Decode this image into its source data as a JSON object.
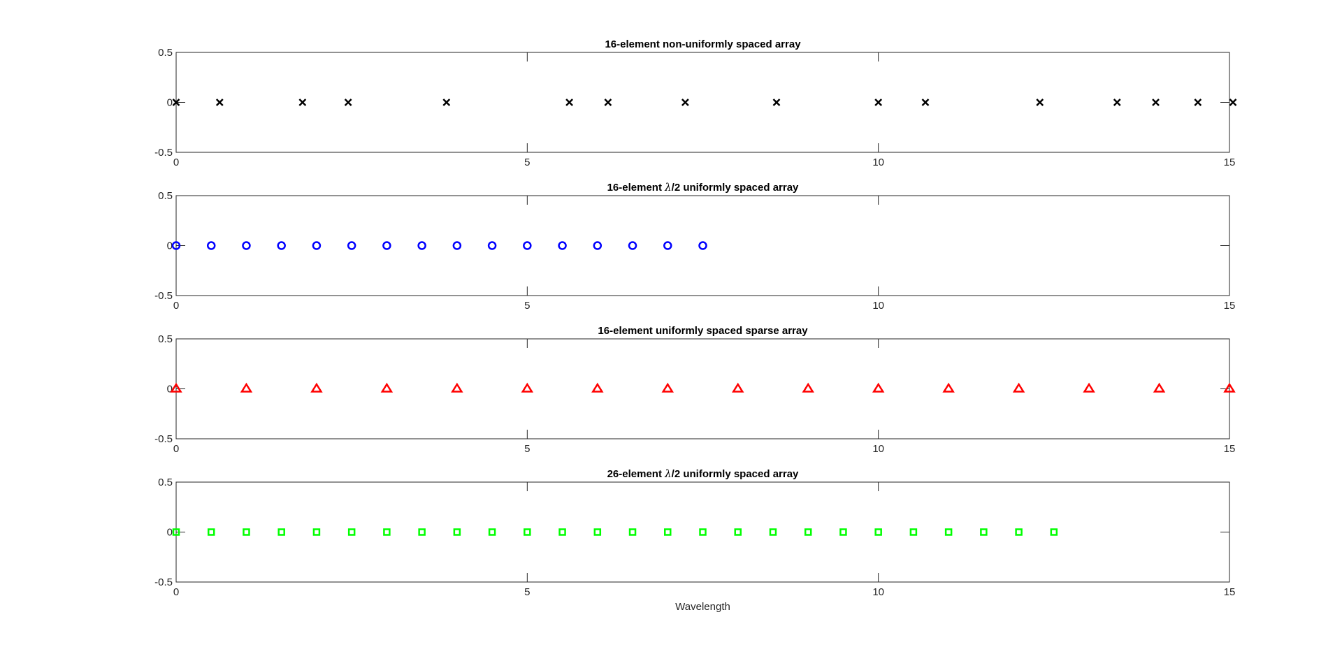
{
  "chart_data": [
    {
      "type": "scatter",
      "title": "16-element non-uniformly spaced array",
      "title_parts": [
        "16-element non-uniformly spaced array"
      ],
      "xlabel": "",
      "ylabel": "",
      "xlim": [
        0,
        15
      ],
      "ylim": [
        -0.5,
        0.5
      ],
      "xticks": [
        0,
        5,
        10,
        15
      ],
      "yticks": [
        -0.5,
        0,
        0.5
      ],
      "xtick_labels": [
        "0",
        "5",
        "10",
        "15"
      ],
      "ytick_labels": [
        "-0.5",
        "0",
        "0.5"
      ],
      "grid": false,
      "marker": "x",
      "color": "#000000",
      "series": [
        {
          "x": [
            0,
            0.62,
            1.8,
            2.45,
            3.85,
            5.6,
            6.15,
            7.25,
            8.55,
            10.0,
            10.67,
            12.3,
            13.4,
            13.95,
            14.55,
            15.05
          ],
          "y": [
            0,
            0,
            0,
            0,
            0,
            0,
            0,
            0,
            0,
            0,
            0,
            0,
            0,
            0,
            0,
            0
          ]
        }
      ]
    },
    {
      "type": "scatter",
      "title": "16-element λ/2 uniformly spaced array",
      "title_parts": [
        "16-element ",
        "λ",
        "/2 uniformly spaced array"
      ],
      "xlabel": "",
      "ylabel": "",
      "xlim": [
        0,
        15
      ],
      "ylim": [
        -0.5,
        0.5
      ],
      "xticks": [
        0,
        5,
        10,
        15
      ],
      "yticks": [
        -0.5,
        0,
        0.5
      ],
      "xtick_labels": [
        "0",
        "5",
        "10",
        "15"
      ],
      "ytick_labels": [
        "-0.5",
        "0",
        "0.5"
      ],
      "grid": false,
      "marker": "o",
      "color": "#0000FF",
      "series": [
        {
          "x": [
            0,
            0.5,
            1.0,
            1.5,
            2.0,
            2.5,
            3.0,
            3.5,
            4.0,
            4.5,
            5.0,
            5.5,
            6.0,
            6.5,
            7.0,
            7.5
          ],
          "y": [
            0,
            0,
            0,
            0,
            0,
            0,
            0,
            0,
            0,
            0,
            0,
            0,
            0,
            0,
            0,
            0
          ]
        }
      ]
    },
    {
      "type": "scatter",
      "title": "16-element uniformly spaced sparse array",
      "title_parts": [
        "16-element uniformly spaced sparse array"
      ],
      "xlabel": "",
      "ylabel": "",
      "xlim": [
        0,
        15
      ],
      "ylim": [
        -0.5,
        0.5
      ],
      "xticks": [
        0,
        5,
        10,
        15
      ],
      "yticks": [
        -0.5,
        0,
        0.5
      ],
      "xtick_labels": [
        "0",
        "5",
        "10",
        "15"
      ],
      "ytick_labels": [
        "-0.5",
        "0",
        "0.5"
      ],
      "grid": false,
      "marker": "triangle",
      "color": "#FF0000",
      "series": [
        {
          "x": [
            0,
            1,
            2,
            3,
            4,
            5,
            6,
            7,
            8,
            9,
            10,
            11,
            12,
            13,
            14,
            15
          ],
          "y": [
            0,
            0,
            0,
            0,
            0,
            0,
            0,
            0,
            0,
            0,
            0,
            0,
            0,
            0,
            0,
            0
          ]
        }
      ]
    },
    {
      "type": "scatter",
      "title": "26-element λ/2 uniformly spaced array",
      "title_parts": [
        "26-element ",
        "λ",
        "/2 uniformly spaced array"
      ],
      "xlabel": "Wavelength",
      "ylabel": "",
      "xlim": [
        0,
        15
      ],
      "ylim": [
        -0.5,
        0.5
      ],
      "xticks": [
        0,
        5,
        10,
        15
      ],
      "yticks": [
        -0.5,
        0,
        0.5
      ],
      "xtick_labels": [
        "0",
        "5",
        "10",
        "15"
      ],
      "ytick_labels": [
        "-0.5",
        "0",
        "0.5"
      ],
      "grid": false,
      "marker": "square",
      "color": "#00FF00",
      "series": [
        {
          "x": [
            0,
            0.5,
            1.0,
            1.5,
            2.0,
            2.5,
            3.0,
            3.5,
            4.0,
            4.5,
            5.0,
            5.5,
            6.0,
            6.5,
            7.0,
            7.5,
            8.0,
            8.5,
            9.0,
            9.5,
            10.0,
            10.5,
            11.0,
            11.5,
            12.0,
            12.5
          ],
          "y": [
            0,
            0,
            0,
            0,
            0,
            0,
            0,
            0,
            0,
            0,
            0,
            0,
            0,
            0,
            0,
            0,
            0,
            0,
            0,
            0,
            0,
            0,
            0,
            0,
            0,
            0
          ]
        }
      ]
    }
  ]
}
